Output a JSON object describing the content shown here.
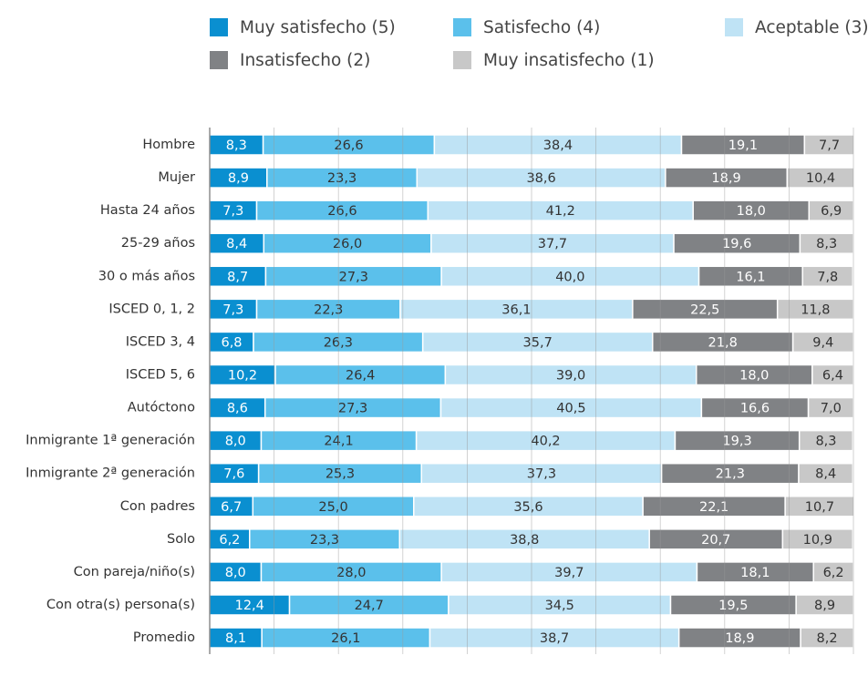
{
  "chart_data": {
    "type": "stacked-barh",
    "categories": [
      "Hombre",
      "Mujer",
      "Hasta 24 años",
      "25-29 años",
      "30 o más años",
      "ISCED 0, 1, 2",
      "ISCED 3, 4",
      "ISCED 5, 6",
      "Autóctono",
      "Inmigrante 1ª generación",
      "Inmigrante 2ª generación",
      "Con padres",
      "Solo",
      "Con pareja/niño(s)",
      "Con otra(s) persona(s)",
      "Promedio"
    ],
    "series": [
      {
        "name": "Muy satisfecho (5)",
        "color": "#0a8fd0",
        "values": [
          8.3,
          8.9,
          7.3,
          8.4,
          8.7,
          7.3,
          6.8,
          10.2,
          8.6,
          8.0,
          7.6,
          6.7,
          6.2,
          8.0,
          12.4,
          8.1
        ],
        "value_labels": [
          "8,3",
          "8,9",
          "7,3",
          "8,4",
          "8,7",
          "7,3",
          "6,8",
          "10,2",
          "8,6",
          "8,0",
          "7,6",
          "6,7",
          "6,2",
          "8,0",
          "12,4",
          "8,1"
        ]
      },
      {
        "name": "Satisfecho (4)",
        "color": "#5bc0eb",
        "values": [
          26.6,
          23.3,
          26.6,
          26.0,
          27.3,
          22.3,
          26.3,
          26.4,
          27.3,
          24.1,
          25.3,
          25.0,
          23.3,
          28.0,
          24.7,
          26.1
        ],
        "value_labels": [
          "26,6",
          "23,3",
          "26,6",
          "26,0",
          "27,3",
          "22,3",
          "26,3",
          "26,4",
          "27,3",
          "24,1",
          "25,3",
          "25,0",
          "23,3",
          "28,0",
          "24,7",
          "26,1"
        ]
      },
      {
        "name": "Aceptable (3)",
        "color": "#bfe3f5",
        "values": [
          38.4,
          38.6,
          41.2,
          37.7,
          40.0,
          36.1,
          35.7,
          39.0,
          40.5,
          40.2,
          37.3,
          35.6,
          38.8,
          39.7,
          34.5,
          38.7
        ],
        "value_labels": [
          "38,4",
          "38,6",
          "41,2",
          "37,7",
          "40,0",
          "36,1",
          "35,7",
          "39,0",
          "40,5",
          "40,2",
          "37,3",
          "35,6",
          "38,8",
          "39,7",
          "34,5",
          "38,7"
        ]
      },
      {
        "name": "Insatisfecho (2)",
        "color": "#808285",
        "values": [
          19.1,
          18.9,
          18.0,
          19.6,
          16.1,
          22.5,
          21.8,
          18.0,
          16.6,
          19.3,
          21.3,
          22.1,
          20.7,
          18.1,
          19.5,
          18.9
        ],
        "value_labels": [
          "19,1",
          "18,9",
          "18,0",
          "19,6",
          "16,1",
          "22,5",
          "21,8",
          "18,0",
          "16,6",
          "19,3",
          "21,3",
          "22,1",
          "20,7",
          "18,1",
          "19,5",
          "18,9"
        ]
      },
      {
        "name": "Muy insatisfecho (1)",
        "color": "#c8c8c8",
        "values": [
          7.7,
          10.4,
          6.9,
          8.3,
          7.8,
          11.8,
          9.4,
          6.4,
          7.0,
          8.3,
          8.4,
          10.7,
          10.9,
          6.2,
          8.9,
          8.2
        ],
        "value_labels": [
          "7,7",
          "10,4",
          "6,9",
          "8,3",
          "7,8",
          "11,8",
          "9,4",
          "6,4",
          "7,0",
          "8,3",
          "8,4",
          "10,7",
          "10,9",
          "6,2",
          "8,9",
          "8,2"
        ]
      }
    ],
    "xlim": [
      0,
      100
    ],
    "xticks": [
      0,
      10,
      20,
      30,
      40,
      50,
      60,
      70,
      80,
      90,
      100
    ],
    "grid": true
  }
}
